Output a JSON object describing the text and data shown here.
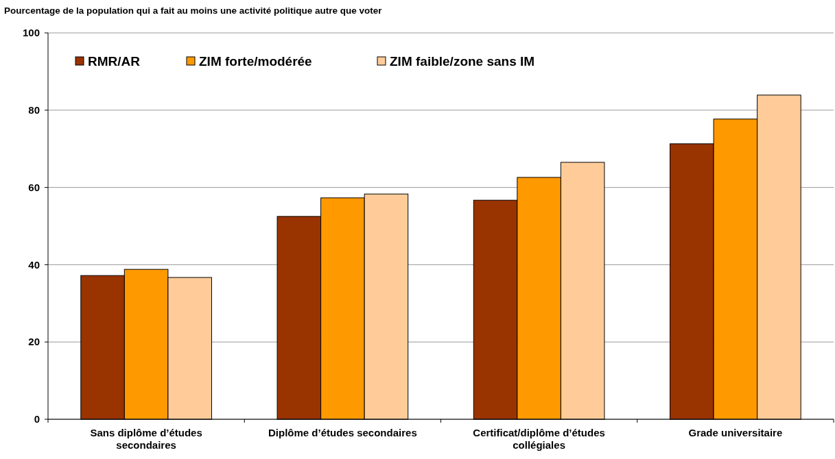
{
  "chart_data": {
    "type": "bar",
    "title": "Pourcentage de la population qui a fait au moins une activité politique autre que voter",
    "categories": [
      "Sans diplôme d’études secondaires",
      "Diplôme d’études secondaires",
      "Certificat/diplôme d’études collégiales",
      "Grade universitaire"
    ],
    "series": [
      {
        "name": "RMR/AR",
        "color": "#993300",
        "values": [
          37.2,
          52.5,
          56.7,
          71.3
        ]
      },
      {
        "name": "ZIM forte/modérée",
        "color": "#ff9900",
        "values": [
          38.8,
          57.3,
          62.6,
          77.7
        ]
      },
      {
        "name": "ZIM faible/zone sans IM",
        "color": "#ffcc99",
        "values": [
          36.7,
          58.3,
          66.5,
          83.9
        ]
      }
    ],
    "ylim": [
      0,
      100
    ],
    "yticks": [
      0,
      20,
      40,
      60,
      80,
      100
    ],
    "grid": "y",
    "legend": "top left"
  }
}
